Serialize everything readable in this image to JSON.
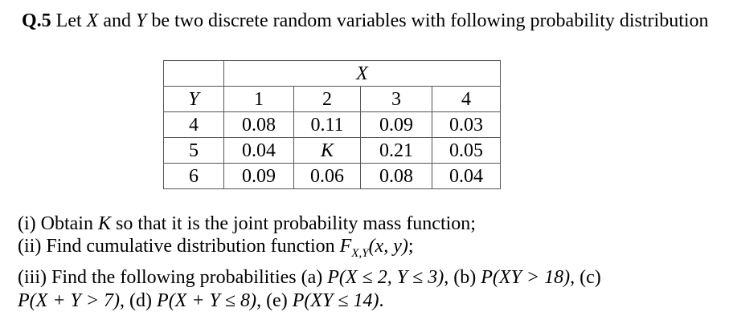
{
  "heading": {
    "label": "Q.5",
    "parts": [
      " Let ",
      "X",
      " and ",
      "Y",
      " be two discrete random variables with following probability distribution"
    ]
  },
  "table": {
    "col_var": "X",
    "row_var": "Y",
    "columns": [
      1,
      2,
      3,
      4
    ],
    "rows": [
      {
        "label": 4,
        "values": [
          0.08,
          0.11,
          0.09,
          0.03
        ]
      },
      {
        "label": 5,
        "values": [
          0.04,
          "K",
          0.21,
          0.05
        ]
      },
      {
        "label": 6,
        "values": [
          0.09,
          0.06,
          0.08,
          0.04
        ]
      }
    ]
  },
  "questions": {
    "i": [
      "(i) Obtain ",
      "K",
      " so that it is the joint probability mass function;"
    ],
    "ii": [
      "(ii) Find cumulative distribution function ",
      "F",
      "X,Y",
      "(x, y)",
      ";"
    ],
    "iii": [
      "(iii) Find the following probabilities (a) ",
      "P(X ≤ 2, Y ≤ 3)",
      ", (b) ",
      "P(XY > 18)",
      ", (c)"
    ],
    "iii_cont": [
      "P(X + Y > 7)",
      ", (d) ",
      "P(X + Y ≤ 8)",
      ", (e) ",
      "P(XY ≤ 14)",
      "."
    ]
  }
}
